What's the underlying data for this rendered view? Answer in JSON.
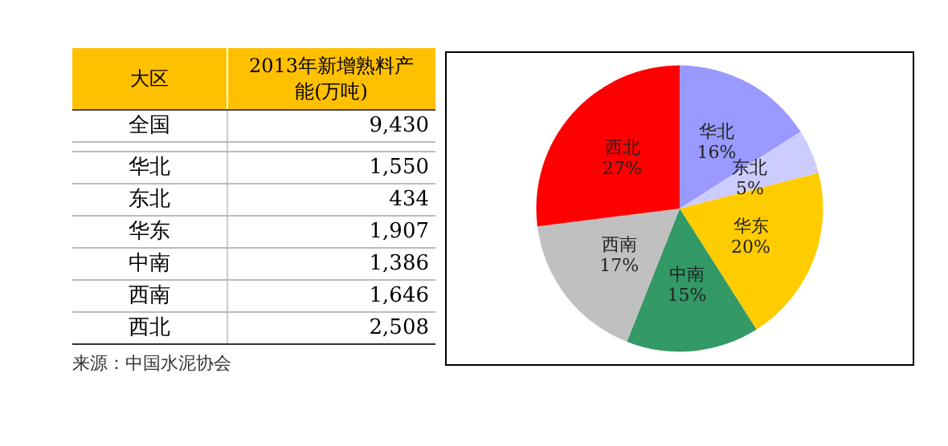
{
  "chart_data": [
    {
      "type": "other",
      "xlabel": "大区",
      "ylabel": "2013年新增熟料产能(万吨)",
      "categories": [
        "全国",
        null,
        "华北",
        "东北",
        "华东",
        "中南",
        "西南",
        "西北"
      ],
      "value_labels": [
        "9,430",
        null,
        "1,550",
        "434",
        "1,907",
        "1,386",
        "1,646",
        "2,508"
      ],
      "color": "#ffc000",
      "annotations": [
        "来源：中国水泥协会"
      ]
    },
    {
      "type": "pie",
      "categories": [
        "华北",
        "东北",
        "华东",
        "中南",
        "西南",
        "西北"
      ],
      "values": [
        16,
        5,
        20,
        15,
        17,
        27
      ],
      "value_labels": [
        "16%",
        "5%",
        "20%",
        "15%",
        "17%",
        "27%"
      ],
      "colors": [
        "#9999ff",
        "#ccccff",
        "#ffcc00",
        "#339966",
        "#c0c0c0",
        "#ff0000"
      ]
    }
  ]
}
